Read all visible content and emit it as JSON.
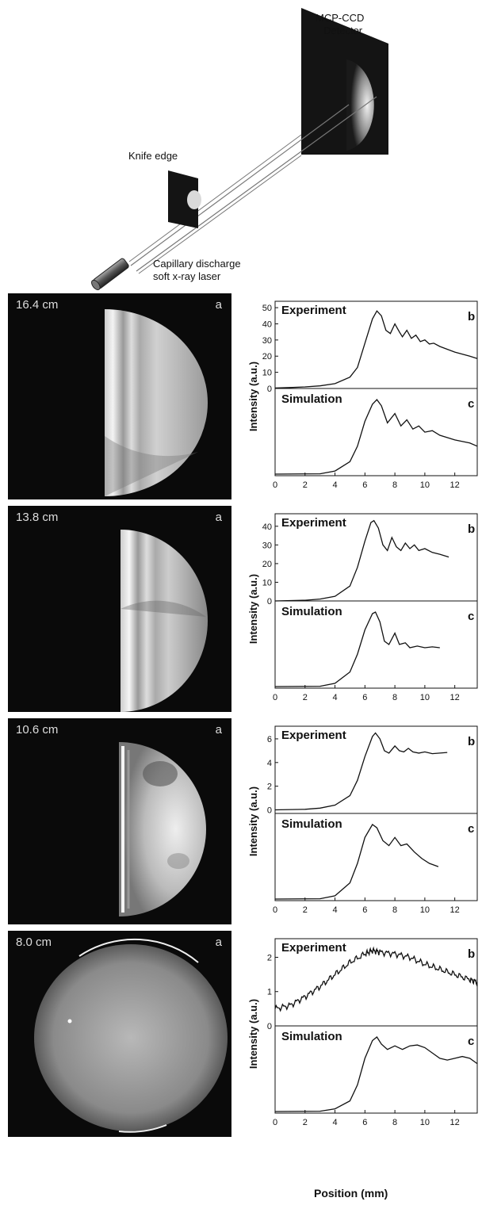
{
  "schematic": {
    "detector_label_line1": "MCP-CCD",
    "detector_label_line2": "Detector",
    "knife_label": "Knife edge",
    "laser_label_line1": "Capillary discharge",
    "laser_label_line2": "soft x-ray laser"
  },
  "panels": [
    {
      "distance": "16.4 cm",
      "letter": "a"
    },
    {
      "distance": "13.8 cm",
      "letter": "a"
    },
    {
      "distance": "10.6 cm",
      "letter": "a"
    },
    {
      "distance": "8.0 cm",
      "letter": "a"
    }
  ],
  "xaxis_title": "Position  (mm)",
  "chart_data": [
    {
      "type": "line",
      "experiment": {
        "label": "Experiment",
        "letter": "b",
        "yticks": [
          0,
          10,
          20,
          30,
          40,
          50
        ],
        "ylim": [
          0,
          52
        ],
        "points": [
          [
            0,
            0.3
          ],
          [
            1,
            0.6
          ],
          [
            2,
            1
          ],
          [
            3,
            1.6
          ],
          [
            4,
            3
          ],
          [
            5,
            7
          ],
          [
            5.5,
            13
          ],
          [
            6,
            28
          ],
          [
            6.5,
            43
          ],
          [
            6.8,
            48
          ],
          [
            7.1,
            45
          ],
          [
            7.4,
            36
          ],
          [
            7.7,
            34
          ],
          [
            8,
            40
          ],
          [
            8.3,
            35
          ],
          [
            8.5,
            32
          ],
          [
            8.8,
            36
          ],
          [
            9.1,
            31
          ],
          [
            9.4,
            33
          ],
          [
            9.7,
            29
          ],
          [
            10,
            30
          ],
          [
            10.3,
            27.5
          ],
          [
            10.6,
            28
          ],
          [
            11,
            26
          ],
          [
            12,
            22.5
          ],
          [
            13,
            20
          ],
          [
            13.5,
            18.5
          ]
        ]
      },
      "simulation": {
        "label": "Simulation",
        "letter": "c",
        "points": [
          [
            0,
            0
          ],
          [
            3,
            0.2
          ],
          [
            4,
            2
          ],
          [
            5,
            8
          ],
          [
            5.5,
            18
          ],
          [
            6,
            34
          ],
          [
            6.5,
            45
          ],
          [
            6.8,
            48
          ],
          [
            7.1,
            44
          ],
          [
            7.5,
            33
          ],
          [
            8,
            39
          ],
          [
            8.4,
            31
          ],
          [
            8.8,
            35
          ],
          [
            9.2,
            29
          ],
          [
            9.6,
            31
          ],
          [
            10,
            27
          ],
          [
            10.5,
            28
          ],
          [
            11,
            25
          ],
          [
            12,
            22
          ],
          [
            13,
            20
          ],
          [
            13.5,
            18
          ]
        ]
      },
      "xlim": [
        0,
        13.5
      ],
      "xticks": [
        0,
        2,
        4,
        6,
        8,
        10,
        12
      ],
      "ylabel": "Intensity (a.u.)"
    },
    {
      "type": "line",
      "experiment": {
        "label": "Experiment",
        "letter": "b",
        "yticks": [
          0,
          10,
          20,
          30,
          40
        ],
        "ylim": [
          0,
          45
        ],
        "points": [
          [
            0,
            0
          ],
          [
            2,
            0.4
          ],
          [
            3,
            1
          ],
          [
            4,
            2.5
          ],
          [
            5,
            8
          ],
          [
            5.5,
            18
          ],
          [
            6,
            32
          ],
          [
            6.4,
            42
          ],
          [
            6.6,
            43
          ],
          [
            6.9,
            39
          ],
          [
            7.2,
            30
          ],
          [
            7.5,
            27
          ],
          [
            7.8,
            34
          ],
          [
            8.1,
            29
          ],
          [
            8.4,
            27
          ],
          [
            8.7,
            31
          ],
          [
            9,
            28
          ],
          [
            9.3,
            30
          ],
          [
            9.6,
            27
          ],
          [
            10,
            28
          ],
          [
            10.5,
            26
          ],
          [
            11,
            25
          ],
          [
            11.6,
            23.5
          ]
        ]
      },
      "simulation": {
        "label": "Simulation",
        "letter": "c",
        "points": [
          [
            0,
            0
          ],
          [
            3,
            0.2
          ],
          [
            4,
            2
          ],
          [
            5,
            9
          ],
          [
            5.5,
            20
          ],
          [
            6,
            35
          ],
          [
            6.5,
            45
          ],
          [
            6.7,
            46
          ],
          [
            7,
            40
          ],
          [
            7.3,
            28
          ],
          [
            7.6,
            26
          ],
          [
            8,
            33
          ],
          [
            8.3,
            26
          ],
          [
            8.7,
            27
          ],
          [
            9,
            24
          ],
          [
            9.5,
            25
          ],
          [
            10,
            24
          ],
          [
            10.5,
            24.5
          ],
          [
            11,
            24
          ]
        ]
      },
      "xlim": [
        0,
        13.5
      ],
      "xticks": [
        0,
        2,
        4,
        6,
        8,
        10,
        12
      ],
      "ylabel": "Intensity (a.u.)"
    },
    {
      "type": "line",
      "experiment": {
        "label": "Experiment",
        "letter": "b",
        "yticks": [
          0,
          2,
          4,
          6
        ],
        "ylim": [
          -0.3,
          6.8
        ],
        "points": [
          [
            0,
            0
          ],
          [
            2,
            0.05
          ],
          [
            3,
            0.15
          ],
          [
            4,
            0.4
          ],
          [
            5,
            1.2
          ],
          [
            5.5,
            2.5
          ],
          [
            6,
            4.5
          ],
          [
            6.5,
            6.2
          ],
          [
            6.7,
            6.5
          ],
          [
            7,
            6
          ],
          [
            7.3,
            5
          ],
          [
            7.6,
            4.8
          ],
          [
            8,
            5.4
          ],
          [
            8.3,
            5
          ],
          [
            8.6,
            4.9
          ],
          [
            8.9,
            5.2
          ],
          [
            9.2,
            4.9
          ],
          [
            9.6,
            4.8
          ],
          [
            10,
            4.9
          ],
          [
            10.5,
            4.75
          ],
          [
            11,
            4.8
          ],
          [
            11.5,
            4.85
          ]
        ]
      },
      "simulation": {
        "label": "Simulation",
        "letter": "c",
        "points": [
          [
            0,
            0
          ],
          [
            3,
            0.2
          ],
          [
            4,
            2
          ],
          [
            5,
            10
          ],
          [
            5.5,
            22
          ],
          [
            6,
            38
          ],
          [
            6.5,
            46
          ],
          [
            6.8,
            44
          ],
          [
            7.2,
            36
          ],
          [
            7.6,
            33
          ],
          [
            8,
            38
          ],
          [
            8.4,
            33
          ],
          [
            8.8,
            34
          ],
          [
            9.3,
            29
          ],
          [
            9.8,
            25
          ],
          [
            10.3,
            22
          ],
          [
            10.9,
            20
          ]
        ]
      },
      "xlim": [
        0,
        13.5
      ],
      "xticks": [
        0,
        2,
        4,
        6,
        8,
        10,
        12
      ],
      "ylabel": "Intensity (a.u.)"
    },
    {
      "type": "line",
      "experiment": {
        "label": "Experiment",
        "letter": "b",
        "yticks": [
          0,
          1,
          2
        ],
        "ylim": [
          0,
          2.45
        ],
        "points": [
          [
            0,
            0.5
          ],
          [
            1,
            0.6
          ],
          [
            2,
            0.85
          ],
          [
            3,
            1.15
          ],
          [
            4,
            1.5
          ],
          [
            5,
            1.85
          ],
          [
            6,
            2.1
          ],
          [
            6.5,
            2.2
          ],
          [
            7,
            2.15
          ],
          [
            8,
            2.1
          ],
          [
            9,
            2.0
          ],
          [
            10,
            1.8
          ],
          [
            11,
            1.65
          ],
          [
            12,
            1.5
          ],
          [
            13,
            1.35
          ],
          [
            13.5,
            1.28
          ]
        ],
        "noisy": true
      },
      "simulation": {
        "label": "Simulation",
        "letter": "c",
        "points": [
          [
            0,
            0
          ],
          [
            3,
            0.2
          ],
          [
            4,
            1.5
          ],
          [
            5,
            6
          ],
          [
            5.5,
            15
          ],
          [
            6,
            30
          ],
          [
            6.5,
            40
          ],
          [
            6.8,
            42
          ],
          [
            7.1,
            38
          ],
          [
            7.5,
            35
          ],
          [
            8,
            37
          ],
          [
            8.5,
            35
          ],
          [
            9,
            37
          ],
          [
            9.5,
            37.5
          ],
          [
            10,
            36
          ],
          [
            10.5,
            33
          ],
          [
            11,
            30
          ],
          [
            11.5,
            29
          ],
          [
            12,
            30
          ],
          [
            12.5,
            31
          ],
          [
            13,
            30
          ],
          [
            13.5,
            27
          ]
        ]
      },
      "xlim": [
        0,
        13.5
      ],
      "xticks": [
        0,
        2,
        4,
        6,
        8,
        10,
        12
      ],
      "ylabel": "Intensity (a.u.)"
    }
  ]
}
